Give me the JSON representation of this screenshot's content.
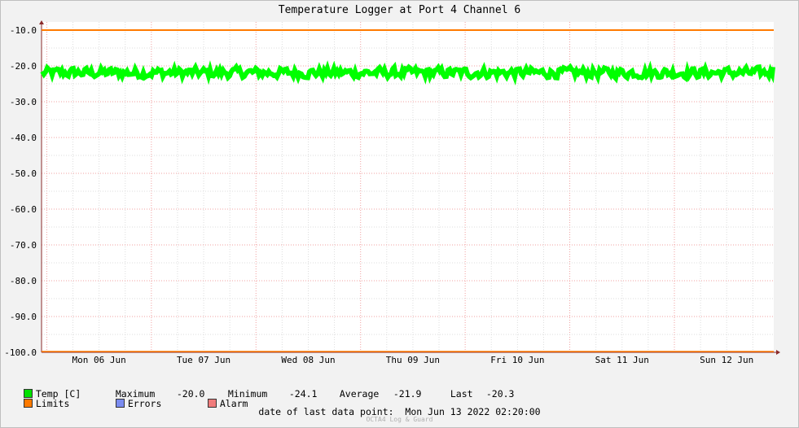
{
  "chart_data": {
    "type": "line",
    "title": "Temperature Logger at Port 4 Channel 6",
    "xlabel": "",
    "ylabel": "",
    "ylim": [
      -100,
      -10
    ],
    "yticks": [
      "-10.0",
      "-20.0",
      "-30.0",
      "-40.0",
      "-50.0",
      "-60.0",
      "-70.0",
      "-80.0",
      "-90.0",
      "-100.0"
    ],
    "x_categories": [
      "Mon 06 Jun",
      "Tue 07 Jun",
      "Wed 08 Jun",
      "Thu 09 Jun",
      "Fri 10 Jun",
      "Sat 11 Jun",
      "Sun 12 Jun"
    ],
    "grid": true,
    "limits": {
      "upper": -10,
      "lower": -100,
      "color": "#ff7a00"
    },
    "series": [
      {
        "name": "Temp [C]",
        "color": "#00ff00",
        "maximum": -20.0,
        "minimum": -24.1,
        "average": -21.9,
        "last": -20.3
      }
    ],
    "legend": {
      "items": [
        {
          "label": "Temp [C]",
          "color": "#00e000"
        },
        {
          "label": "Limits",
          "color": "#ff7a00"
        },
        {
          "label": "Errors",
          "color": "#7b8cf0"
        },
        {
          "label": "Alarm",
          "color": "#f07c7c"
        }
      ],
      "maximum_label": "Maximum",
      "maximum_value": "-20.0",
      "minimum_label": "Minimum",
      "minimum_value": "-24.1",
      "average_label": "Average",
      "average_value": "-21.9",
      "last_label": "Last",
      "last_value": "-20.3"
    },
    "last_data_label": "date of last data point:",
    "last_data_value": "Mon Jun 13 2022 02:20:00",
    "watermark": "OCTA4 Log & Guard"
  }
}
